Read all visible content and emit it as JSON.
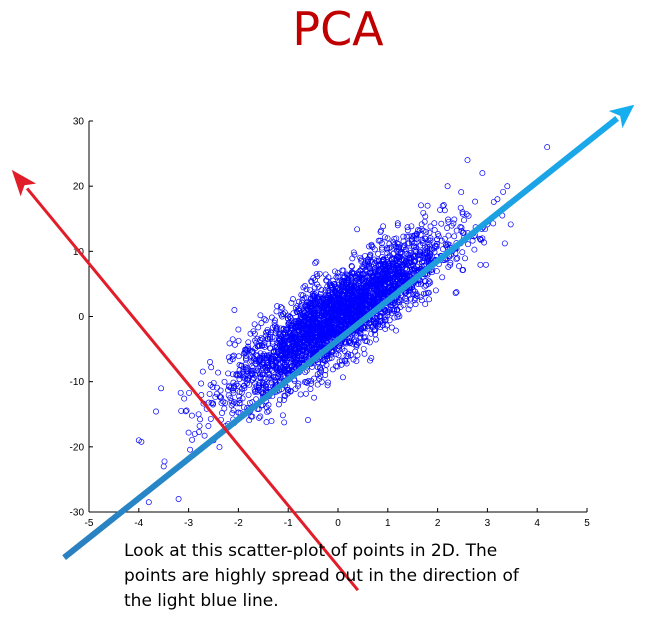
{
  "slide": {
    "title": "PCA",
    "caption": [
      "Look at this scatter-plot of points in 2D. The",
      "points are highly spread out in the direction of",
      "the light blue line."
    ]
  },
  "chart_data": {
    "type": "scatter",
    "title": "",
    "xlabel": "",
    "ylabel": "",
    "xlim": [
      -5,
      5
    ],
    "ylim": [
      -30,
      30
    ],
    "xticks": [
      -5,
      -4,
      -3,
      -2,
      -1,
      0,
      1,
      2,
      3,
      4,
      5
    ],
    "yticks": [
      -30,
      -20,
      -10,
      0,
      10,
      20,
      30
    ],
    "grid": false,
    "marker": "open-circle",
    "point_color": "#0000ff",
    "series": [
      {
        "distribution": "correlated Gaussian cloud along y = 5x",
        "x": [
          4.2,
          3.4,
          3.2,
          2.9,
          2.6,
          2.5,
          -3.2,
          -3.5,
          -4.0,
          -3.8,
          -1.1,
          -2.0,
          1.2,
          -2.5,
          3.3,
          2.2,
          1.8,
          0.7,
          -0.6,
          -1.6,
          0.3,
          1.5,
          -2.8,
          2.9
        ],
        "y": [
          26.0,
          20.0,
          18.0,
          22.0,
          24.0,
          16.0,
          -28.0,
          -23.0,
          -19.0,
          -28.5,
          -4.0,
          -2.0,
          14.0,
          -19.0,
          15.5,
          20.0,
          17.0,
          6.0,
          -1.0,
          -8.0,
          3.0,
          8.0,
          -15.0,
          12.0
        ],
        "approx_point_count": 5000
      }
    ],
    "annotations": [
      {
        "kind": "arrow",
        "description": "principal direction",
        "color": "#1aa6e6",
        "from": [
          -5.5,
          -37.0
        ],
        "to": [
          5.95,
          32.5
        ]
      },
      {
        "kind": "arrow",
        "description": "orthogonal direction",
        "color": "#e11d2a",
        "from": [
          0.4,
          -42.0
        ],
        "to": [
          -6.55,
          22.5
        ]
      }
    ]
  }
}
